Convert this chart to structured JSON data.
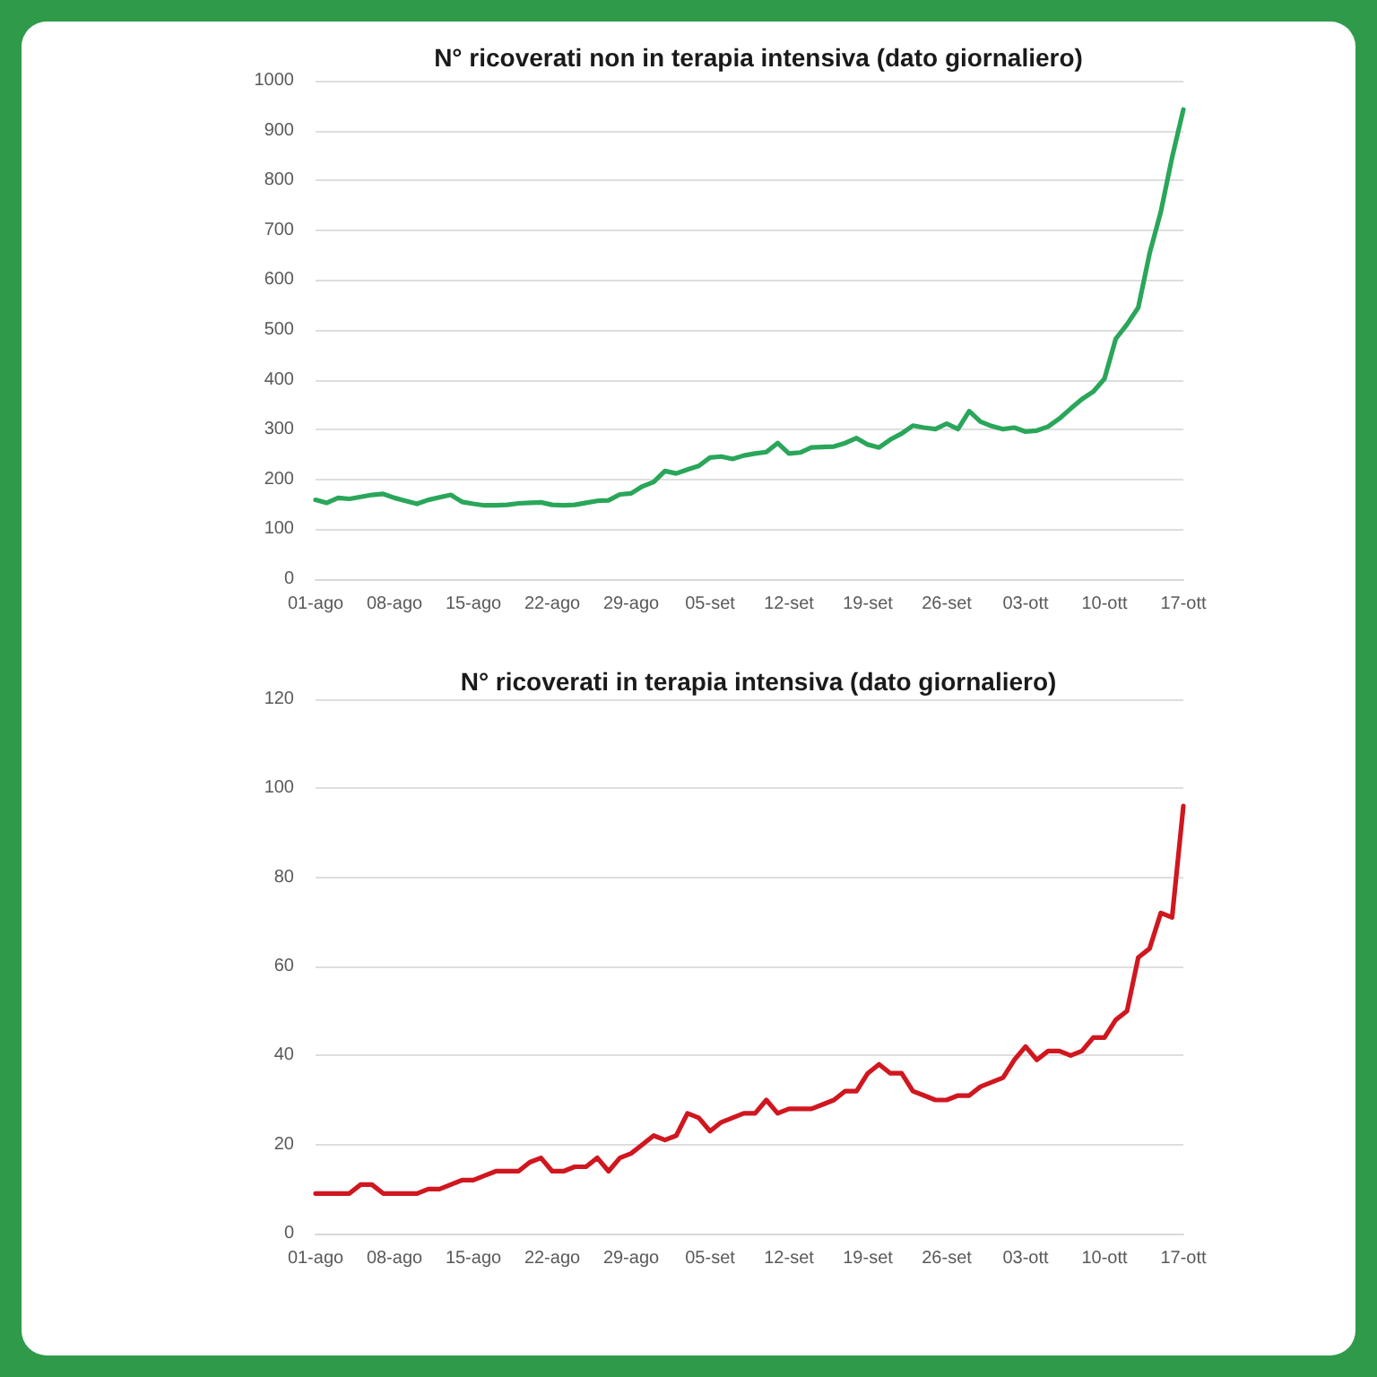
{
  "chart_data": [
    {
      "type": "line",
      "title": "N° ricoverati non in terapia intensiva (dato giornaliero)",
      "categories": [
        "01-ago",
        null,
        null,
        null,
        null,
        null,
        null,
        "08-ago",
        null,
        null,
        null,
        null,
        null,
        null,
        "15-ago",
        null,
        null,
        null,
        null,
        null,
        null,
        "22-ago",
        null,
        null,
        null,
        null,
        null,
        null,
        "29-ago",
        null,
        null,
        null,
        null,
        null,
        null,
        "05-set",
        null,
        null,
        null,
        null,
        null,
        null,
        "12-set",
        null,
        null,
        null,
        null,
        null,
        null,
        "19-set",
        null,
        null,
        null,
        null,
        null,
        null,
        "26-set",
        null,
        null,
        null,
        null,
        null,
        null,
        "03-ott",
        null,
        null,
        null,
        null,
        null,
        null,
        "10-ott",
        null,
        null,
        null,
        null,
        null,
        null,
        "17-ott"
      ],
      "series": [
        {
          "color": "#2aa65a",
          "values": [
            159,
            153,
            163,
            161,
            165,
            169,
            171,
            163,
            157,
            151,
            159,
            164,
            169,
            155,
            151,
            148,
            148,
            149,
            152,
            153,
            154,
            149,
            148,
            149,
            153,
            157,
            158,
            170,
            172,
            186,
            195,
            217,
            212,
            220,
            227,
            244,
            246,
            241,
            248,
            252,
            255,
            273,
            252,
            254,
            264,
            265,
            266,
            273,
            283,
            270,
            264,
            280,
            292,
            308,
            304,
            301,
            312,
            301,
            337,
            316,
            307,
            301,
            304,
            296,
            298,
            306,
            322,
            342,
            361,
            376,
            402,
            482,
            511,
            545,
            653,
            737,
            846,
            942
          ]
        }
      ],
      "ylim": [
        0,
        1000
      ],
      "yticks": [
        0,
        100,
        200,
        300,
        400,
        500,
        600,
        700,
        800,
        900,
        1000
      ],
      "grid": "y",
      "marker": "none"
    },
    {
      "type": "line",
      "title": "N° ricoverati in terapia intensiva (dato giornaliero)",
      "categories": [
        "01-ago",
        null,
        null,
        null,
        null,
        null,
        null,
        "08-ago",
        null,
        null,
        null,
        null,
        null,
        null,
        "15-ago",
        null,
        null,
        null,
        null,
        null,
        null,
        "22-ago",
        null,
        null,
        null,
        null,
        null,
        null,
        "29-ago",
        null,
        null,
        null,
        null,
        null,
        null,
        "05-set",
        null,
        null,
        null,
        null,
        null,
        null,
        "12-set",
        null,
        null,
        null,
        null,
        null,
        null,
        "19-set",
        null,
        null,
        null,
        null,
        null,
        null,
        "26-set",
        null,
        null,
        null,
        null,
        null,
        null,
        "03-ott",
        null,
        null,
        null,
        null,
        null,
        null,
        "10-ott",
        null,
        null,
        null,
        null,
        null,
        null,
        "17-ott"
      ],
      "series": [
        {
          "color": "#d0171f",
          "values": [
            9,
            9,
            9,
            9,
            11,
            11,
            9,
            9,
            9,
            9,
            10,
            10,
            11,
            12,
            12,
            13,
            14,
            14,
            14,
            16,
            17,
            14,
            14,
            15,
            15,
            17,
            14,
            17,
            18,
            20,
            22,
            21,
            22,
            27,
            26,
            23,
            25,
            26,
            27,
            27,
            30,
            27,
            28,
            28,
            28,
            29,
            30,
            32,
            32,
            36,
            38,
            36,
            36,
            32,
            31,
            30,
            30,
            31,
            31,
            33,
            34,
            35,
            39,
            42,
            39,
            41,
            41,
            40,
            41,
            44,
            44,
            48,
            50,
            62,
            64,
            72,
            71,
            96
          ]
        }
      ],
      "ylim": [
        0,
        120
      ],
      "yticks": [
        0,
        20,
        40,
        60,
        80,
        100,
        120
      ],
      "grid": "y",
      "marker": "none"
    }
  ]
}
